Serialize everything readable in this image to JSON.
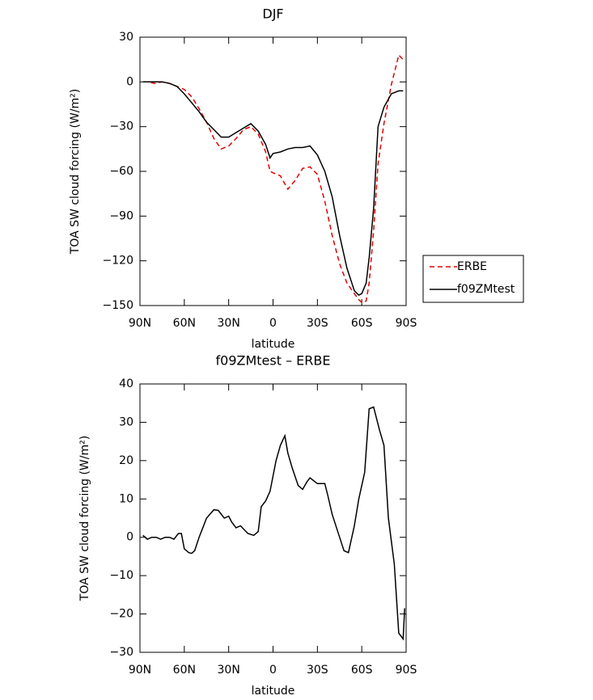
{
  "chart_data": [
    {
      "type": "line",
      "title": "DJF",
      "xlabel": "latitude",
      "ylabel": "TOA SW cloud forcing (W/m²)",
      "x": [
        88,
        85,
        80,
        75,
        70,
        65,
        60,
        55,
        50,
        45,
        40,
        35,
        30,
        25,
        20,
        15,
        10,
        5,
        2,
        0,
        -5,
        -10,
        -15,
        -20,
        -25,
        -30,
        -35,
        -40,
        -45,
        -50,
        -55,
        -58,
        -60,
        -63,
        -65,
        -68,
        -71,
        -75,
        -80,
        -85,
        -88
      ],
      "series": [
        {
          "name": "ERBE",
          "color": "#e00000",
          "line_style": "dashed",
          "values": [
            0,
            0,
            -1,
            0,
            -1,
            -3,
            -5,
            -10,
            -18,
            -27,
            -38,
            -45,
            -43,
            -38,
            -32,
            -30,
            -35,
            -47,
            -60,
            -61,
            -63,
            -72,
            -66,
            -58,
            -57,
            -62,
            -80,
            -103,
            -122,
            -135,
            -142,
            -146,
            -148,
            -147,
            -135,
            -100,
            -55,
            -28,
            -2,
            18,
            15
          ]
        },
        {
          "name": "f09ZMtest",
          "color": "#000000",
          "line_style": "solid",
          "values": [
            0,
            0,
            0,
            0,
            -1,
            -3,
            -8,
            -14,
            -20,
            -27,
            -32,
            -37,
            -37,
            -34,
            -31,
            -28,
            -33,
            -42,
            -51,
            -48,
            -47,
            -45,
            -44,
            -44,
            -43,
            -49,
            -60,
            -77,
            -103,
            -125,
            -140,
            -143,
            -142,
            -135,
            -118,
            -85,
            -30,
            -17,
            -8,
            -6,
            -6
          ]
        }
      ],
      "xlim": [
        90,
        -90
      ],
      "xticks": [
        {
          "value": 90,
          "label": "90N"
        },
        {
          "value": 60,
          "label": "60N"
        },
        {
          "value": 30,
          "label": "30N"
        },
        0,
        {
          "value": -30,
          "label": "30S"
        },
        {
          "value": -60,
          "label": "60S"
        },
        {
          "value": -90,
          "label": "90S"
        }
      ],
      "ylim": [
        -150,
        30
      ],
      "yticks": [
        -150,
        -120,
        -90,
        -60,
        -30,
        0,
        30
      ],
      "legend": "right"
    },
    {
      "type": "line",
      "title": "f09ZMtest – ERBE",
      "xlabel": "latitude",
      "ylabel": "TOA SW cloud forcing (W/m²)",
      "x": [
        88,
        85,
        82,
        79,
        76,
        73,
        70,
        67,
        64,
        62,
        60,
        57,
        55,
        53,
        50,
        45,
        40,
        37,
        33,
        30,
        28,
        25,
        22,
        17,
        13,
        10,
        8,
        5,
        2,
        -2,
        -5,
        -8,
        -10,
        -13,
        -17,
        -20,
        -23,
        -25,
        -30,
        -35,
        -37,
        -40,
        -45,
        -48,
        -51,
        -55,
        -58,
        -62,
        -65,
        -68,
        -72,
        -75,
        -78,
        -82,
        -85,
        -88,
        -89
      ],
      "values": [
        0.5,
        -0.5,
        0,
        0,
        -0.5,
        0,
        0,
        -0.5,
        1,
        1,
        -3,
        -4,
        -4.2,
        -3.5,
        0,
        5,
        7.2,
        7,
        5,
        5.5,
        4,
        2.5,
        3,
        1,
        0.5,
        1.5,
        8,
        9.5,
        12,
        20,
        24,
        26.5,
        22,
        18,
        13.5,
        12.5,
        14.5,
        15.5,
        14,
        14,
        11,
        6,
        0,
        -3.5,
        -4,
        3,
        10,
        17,
        33.5,
        34,
        28,
        24,
        5,
        -7,
        -25,
        -26.5,
        -18.5
      ],
      "color": "#000000",
      "xlim": [
        90,
        -90
      ],
      "xticks": [
        {
          "value": 90,
          "label": "90N"
        },
        {
          "value": 60,
          "label": "60N"
        },
        {
          "value": 30,
          "label": "30N"
        },
        0,
        {
          "value": -30,
          "label": "30S"
        },
        {
          "value": -60,
          "label": "60S"
        },
        {
          "value": -90,
          "label": "90S"
        }
      ],
      "ylim": [
        -30,
        40
      ],
      "yticks": [
        -30,
        -20,
        -10,
        0,
        10,
        20,
        30,
        40
      ]
    }
  ]
}
